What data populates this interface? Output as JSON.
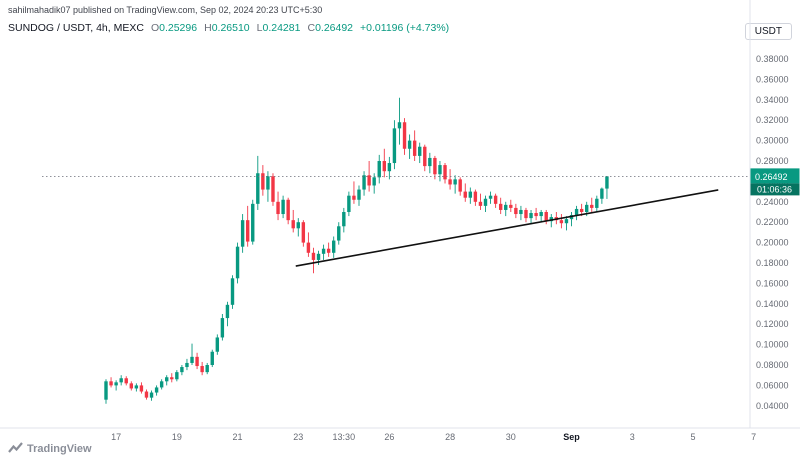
{
  "attribution": "sahilmahadik07 published on TradingView.com, Sep 02, 2024 20:23 UTC+5:30",
  "header": {
    "title": "SUNDOG / USDT, 4h, MEXC",
    "ohlc": {
      "o_label": "O",
      "o_value": "0.25296",
      "h_label": "H",
      "h_value": "0.26510",
      "l_label": "L",
      "l_value": "0.24281",
      "c_label": "C",
      "c_value": "0.26492",
      "change": "+0.01196 (+4.73%)"
    }
  },
  "currency_button": "USDT",
  "watermark": "TradingView",
  "price_badge": {
    "price": "0.26492",
    "countdown": "01:06:36"
  },
  "colors": {
    "up": "#089981",
    "down": "#f23645",
    "badge_countdown": "#067360",
    "axis_line": "#e0e3eb",
    "trendline": "#111111",
    "last_price_line": "#6a6d78"
  },
  "chart_data": {
    "type": "candlestick",
    "symbol": "SUNDOG/USDT",
    "interval": "4h",
    "exchange": "MEXC",
    "title": "",
    "legend_ohlc": {
      "open": 0.25296,
      "high": 0.2651,
      "low": 0.24281,
      "close": 0.26492,
      "change": "+0.01196 (+4.73%)"
    },
    "price_axis": {
      "min": 0.04,
      "max": 0.38,
      "step": 0.02,
      "label_format": "0.00000",
      "tick_labels": [
        "0.38000",
        "0.36000",
        "0.34000",
        "0.32000",
        "0.30000",
        "0.28000",
        "0.26000",
        "0.24000",
        "0.22000",
        "0.20000",
        "0.18000",
        "0.16000",
        "0.14000",
        "0.12000",
        "0.10000",
        "0.08000",
        "0.06000",
        "0.04000"
      ]
    },
    "x_ticks": [
      {
        "label": "17",
        "index": 2
      },
      {
        "label": "19",
        "index": 14
      },
      {
        "label": "21",
        "index": 26
      },
      {
        "label": "23",
        "index": 38
      },
      {
        "label": "13:30",
        "index": 47
      },
      {
        "label": "26",
        "index": 56
      },
      {
        "label": "28",
        "index": 68
      },
      {
        "label": "30",
        "index": 80
      },
      {
        "label": "Sep",
        "index": 92,
        "emph": true
      },
      {
        "label": "3",
        "index": 104
      },
      {
        "label": "5",
        "index": 116
      },
      {
        "label": "7",
        "index": 128
      }
    ],
    "candles": [
      [
        0.046,
        0.066,
        0.042,
        0.064
      ],
      [
        0.064,
        0.068,
        0.058,
        0.06
      ],
      [
        0.06,
        0.065,
        0.055,
        0.063
      ],
      [
        0.063,
        0.07,
        0.06,
        0.067
      ],
      [
        0.067,
        0.069,
        0.06,
        0.062
      ],
      [
        0.062,
        0.064,
        0.055,
        0.057
      ],
      [
        0.057,
        0.062,
        0.054,
        0.06
      ],
      [
        0.06,
        0.063,
        0.052,
        0.054
      ],
      [
        0.054,
        0.056,
        0.046,
        0.048
      ],
      [
        0.048,
        0.055,
        0.045,
        0.053
      ],
      [
        0.053,
        0.06,
        0.05,
        0.058
      ],
      [
        0.058,
        0.066,
        0.056,
        0.064
      ],
      [
        0.064,
        0.07,
        0.06,
        0.068
      ],
      [
        0.068,
        0.072,
        0.063,
        0.066
      ],
      [
        0.066,
        0.075,
        0.064,
        0.073
      ],
      [
        0.073,
        0.08,
        0.07,
        0.078
      ],
      [
        0.078,
        0.086,
        0.075,
        0.082
      ],
      [
        0.082,
        0.101,
        0.08,
        0.088
      ],
      [
        0.088,
        0.092,
        0.076,
        0.079
      ],
      [
        0.079,
        0.083,
        0.07,
        0.073
      ],
      [
        0.073,
        0.082,
        0.071,
        0.08
      ],
      [
        0.08,
        0.095,
        0.078,
        0.093
      ],
      [
        0.093,
        0.11,
        0.09,
        0.107
      ],
      [
        0.107,
        0.13,
        0.104,
        0.126
      ],
      [
        0.126,
        0.142,
        0.118,
        0.139
      ],
      [
        0.139,
        0.168,
        0.135,
        0.165
      ],
      [
        0.165,
        0.2,
        0.16,
        0.196
      ],
      [
        0.196,
        0.228,
        0.19,
        0.222
      ],
      [
        0.222,
        0.236,
        0.196,
        0.201
      ],
      [
        0.201,
        0.242,
        0.198,
        0.238
      ],
      [
        0.238,
        0.285,
        0.232,
        0.268
      ],
      [
        0.268,
        0.276,
        0.246,
        0.252
      ],
      [
        0.252,
        0.27,
        0.24,
        0.265
      ],
      [
        0.265,
        0.268,
        0.236,
        0.24
      ],
      [
        0.24,
        0.25,
        0.222,
        0.228
      ],
      [
        0.228,
        0.246,
        0.224,
        0.242
      ],
      [
        0.242,
        0.244,
        0.218,
        0.222
      ],
      [
        0.222,
        0.232,
        0.21,
        0.214
      ],
      [
        0.214,
        0.224,
        0.206,
        0.22
      ],
      [
        0.22,
        0.222,
        0.196,
        0.2
      ],
      [
        0.2,
        0.21,
        0.186,
        0.19
      ],
      [
        0.19,
        0.195,
        0.17,
        0.183
      ],
      [
        0.183,
        0.192,
        0.178,
        0.189
      ],
      [
        0.189,
        0.198,
        0.183,
        0.194
      ],
      [
        0.194,
        0.2,
        0.186,
        0.19
      ],
      [
        0.19,
        0.206,
        0.185,
        0.202
      ],
      [
        0.202,
        0.22,
        0.198,
        0.216
      ],
      [
        0.216,
        0.234,
        0.21,
        0.23
      ],
      [
        0.23,
        0.25,
        0.226,
        0.246
      ],
      [
        0.246,
        0.26,
        0.238,
        0.242
      ],
      [
        0.242,
        0.256,
        0.236,
        0.252
      ],
      [
        0.252,
        0.27,
        0.246,
        0.266
      ],
      [
        0.266,
        0.28,
        0.25,
        0.256
      ],
      [
        0.256,
        0.268,
        0.248,
        0.264
      ],
      [
        0.264,
        0.286,
        0.258,
        0.28
      ],
      [
        0.28,
        0.292,
        0.264,
        0.27
      ],
      [
        0.27,
        0.284,
        0.262,
        0.278
      ],
      [
        0.278,
        0.32,
        0.272,
        0.312
      ],
      [
        0.312,
        0.342,
        0.296,
        0.318
      ],
      [
        0.318,
        0.322,
        0.286,
        0.292
      ],
      [
        0.292,
        0.306,
        0.282,
        0.3
      ],
      [
        0.3,
        0.31,
        0.28,
        0.285
      ],
      [
        0.285,
        0.298,
        0.278,
        0.294
      ],
      [
        0.294,
        0.296,
        0.27,
        0.275
      ],
      [
        0.275,
        0.288,
        0.268,
        0.283
      ],
      [
        0.283,
        0.285,
        0.262,
        0.267
      ],
      [
        0.267,
        0.28,
        0.26,
        0.276
      ],
      [
        0.276,
        0.278,
        0.258,
        0.262
      ],
      [
        0.262,
        0.272,
        0.252,
        0.257
      ],
      [
        0.257,
        0.266,
        0.248,
        0.262
      ],
      [
        0.262,
        0.264,
        0.246,
        0.25
      ],
      [
        0.25,
        0.258,
        0.24,
        0.244
      ],
      [
        0.244,
        0.254,
        0.238,
        0.25
      ],
      [
        0.25,
        0.252,
        0.236,
        0.24
      ],
      [
        0.24,
        0.248,
        0.232,
        0.236
      ],
      [
        0.236,
        0.246,
        0.23,
        0.243
      ],
      [
        0.243,
        0.25,
        0.238,
        0.246
      ],
      [
        0.246,
        0.248,
        0.234,
        0.238
      ],
      [
        0.238,
        0.244,
        0.228,
        0.232
      ],
      [
        0.232,
        0.24,
        0.226,
        0.237
      ],
      [
        0.237,
        0.242,
        0.23,
        0.234
      ],
      [
        0.234,
        0.238,
        0.224,
        0.228
      ],
      [
        0.228,
        0.236,
        0.222,
        0.232
      ],
      [
        0.232,
        0.234,
        0.22,
        0.224
      ],
      [
        0.224,
        0.232,
        0.218,
        0.229
      ],
      [
        0.229,
        0.234,
        0.222,
        0.226
      ],
      [
        0.226,
        0.232,
        0.22,
        0.23
      ],
      [
        0.23,
        0.232,
        0.218,
        0.221
      ],
      [
        0.221,
        0.228,
        0.215,
        0.225
      ],
      [
        0.225,
        0.23,
        0.218,
        0.222
      ],
      [
        0.222,
        0.228,
        0.214,
        0.219
      ],
      [
        0.219,
        0.226,
        0.212,
        0.223
      ],
      [
        0.223,
        0.23,
        0.216,
        0.227
      ],
      [
        0.227,
        0.236,
        0.222,
        0.233
      ],
      [
        0.233,
        0.238,
        0.226,
        0.23
      ],
      [
        0.23,
        0.24,
        0.226,
        0.237
      ],
      [
        0.237,
        0.244,
        0.23,
        0.234
      ],
      [
        0.234,
        0.246,
        0.23,
        0.243
      ],
      [
        0.243,
        0.254,
        0.238,
        0.25296
      ],
      [
        0.25296,
        0.2651,
        0.24281,
        0.26492
      ]
    ],
    "trendline": {
      "from_index": 37.5,
      "from_price": 0.177,
      "to_index": 121,
      "to_price": 0.2516
    },
    "last_price": 0.26492,
    "countdown": "01:06:36",
    "grid": "off",
    "legend_position": "top-left"
  }
}
